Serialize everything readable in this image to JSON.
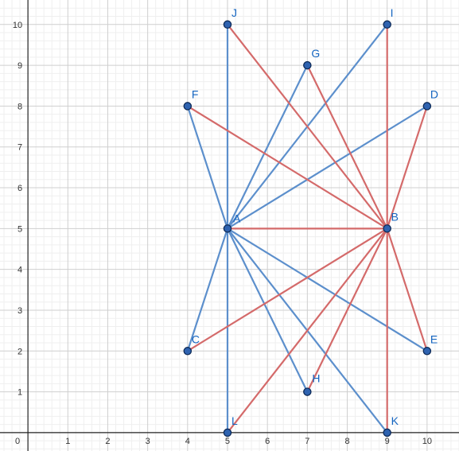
{
  "graph": {
    "x_range": [
      -0.7,
      10.8
    ],
    "y_range": [
      -0.45,
      10.6
    ],
    "x_ticks": [
      "1",
      "2",
      "3",
      "4",
      "5",
      "6",
      "7",
      "8",
      "9",
      "10"
    ],
    "y_ticks": [
      "1",
      "2",
      "3",
      "4",
      "5",
      "6",
      "7",
      "8",
      "9",
      "10"
    ],
    "origin_label": "0",
    "minor_step": 0.2,
    "colors": {
      "grid_minor": "#efefef",
      "grid_major": "#cfcfcf",
      "axis": "#222222",
      "blue": "#5c8fcc",
      "red": "#d46a6a",
      "point_fill": "#2f63b0",
      "point_stroke": "#0d2a57",
      "label": "#1565c0"
    },
    "points": [
      {
        "name": "A",
        "x": 5,
        "y": 5,
        "dx": 7,
        "dy": -8
      },
      {
        "name": "B",
        "x": 9,
        "y": 5,
        "dx": 5,
        "dy": -10
      },
      {
        "name": "C",
        "x": 4,
        "y": 2,
        "dx": 5,
        "dy": -10
      },
      {
        "name": "D",
        "x": 10,
        "y": 8,
        "dx": 4,
        "dy": -10
      },
      {
        "name": "E",
        "x": 10,
        "y": 2,
        "dx": 4,
        "dy": -10
      },
      {
        "name": "F",
        "x": 4,
        "y": 8,
        "dx": 5,
        "dy": -10
      },
      {
        "name": "G",
        "x": 7,
        "y": 9,
        "dx": 5,
        "dy": -10
      },
      {
        "name": "H",
        "x": 7,
        "y": 1,
        "dx": 6,
        "dy": -12
      },
      {
        "name": "I",
        "x": 9,
        "y": 10,
        "dx": 4,
        "dy": -10
      },
      {
        "name": "J",
        "x": 5,
        "y": 10,
        "dx": 5,
        "dy": -10
      },
      {
        "name": "K",
        "x": 9,
        "y": 0,
        "dx": 5,
        "dy": -10
      },
      {
        "name": "L",
        "x": 5,
        "y": 0,
        "dx": 5,
        "dy": -10
      }
    ],
    "segments": [
      {
        "from": "A",
        "to": "J",
        "color": "blue"
      },
      {
        "from": "A",
        "to": "L",
        "color": "blue"
      },
      {
        "from": "A",
        "to": "F",
        "color": "blue"
      },
      {
        "from": "A",
        "to": "G",
        "color": "blue"
      },
      {
        "from": "A",
        "to": "I",
        "color": "blue"
      },
      {
        "from": "A",
        "to": "D",
        "color": "blue"
      },
      {
        "from": "A",
        "to": "C",
        "color": "blue"
      },
      {
        "from": "A",
        "to": "H",
        "color": "blue"
      },
      {
        "from": "A",
        "to": "K",
        "color": "blue"
      },
      {
        "from": "A",
        "to": "E",
        "color": "blue"
      },
      {
        "from": "B",
        "to": "J",
        "color": "red"
      },
      {
        "from": "B",
        "to": "G",
        "color": "red"
      },
      {
        "from": "B",
        "to": "I",
        "color": "red"
      },
      {
        "from": "B",
        "to": "D",
        "color": "red"
      },
      {
        "from": "B",
        "to": "F",
        "color": "red"
      },
      {
        "from": "B",
        "to": "A",
        "color": "red"
      },
      {
        "from": "B",
        "to": "C",
        "color": "red"
      },
      {
        "from": "B",
        "to": "L",
        "color": "red"
      },
      {
        "from": "B",
        "to": "H",
        "color": "red"
      },
      {
        "from": "B",
        "to": "K",
        "color": "red"
      },
      {
        "from": "B",
        "to": "E",
        "color": "red"
      }
    ]
  }
}
